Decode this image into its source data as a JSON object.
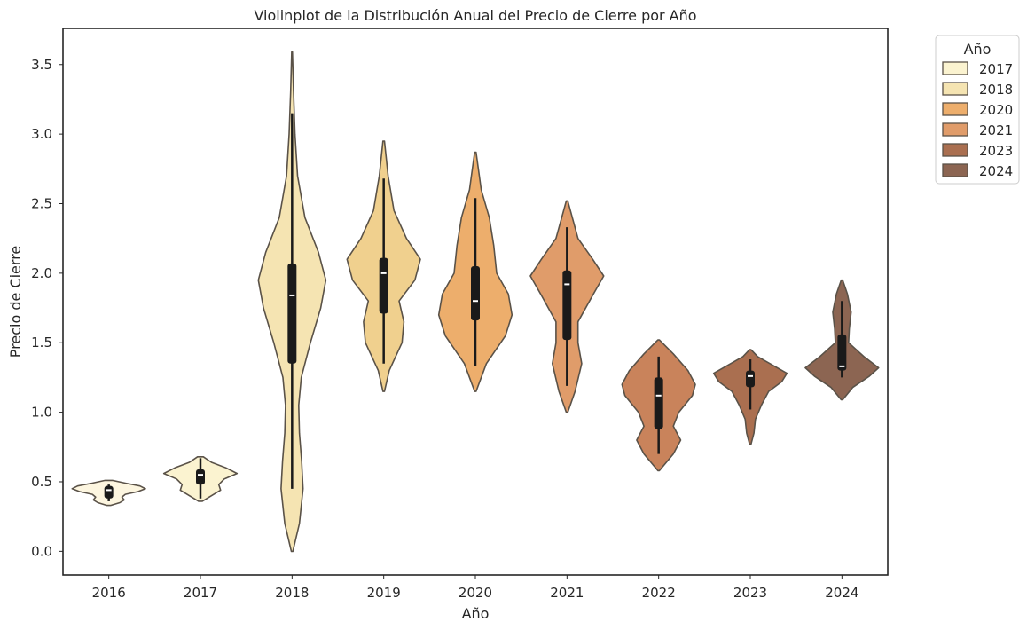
{
  "chart_data": {
    "type": "violin",
    "title": "Violinplot de la Distribución Anual del Precio de Cierre por Año",
    "xlabel": "Año",
    "ylabel": "Precio de Cierre",
    "categories": [
      "2016",
      "2017",
      "2018",
      "2019",
      "2020",
      "2021",
      "2022",
      "2023",
      "2024"
    ],
    "ylim": [
      -0.17,
      3.76
    ],
    "yticks": [
      "0.0",
      "0.5",
      "1.0",
      "1.5",
      "2.0",
      "2.5",
      "3.0",
      "3.5"
    ],
    "grid": false,
    "legend": {
      "title": "Año",
      "placement": "outside-top-right",
      "entries": [
        "2017",
        "2018",
        "2020",
        "2021",
        "2023",
        "2024"
      ]
    },
    "series": [
      {
        "category": "2016",
        "color": "#fdf6e0",
        "min": 0.34,
        "max": 0.5,
        "q1": 0.38,
        "median": 0.44,
        "q3": 0.47,
        "whisker_low": 0.36,
        "whisker_high": 0.48,
        "density": [
          [
            0.33,
            0.05
          ],
          [
            0.35,
            0.3
          ],
          [
            0.37,
            0.42
          ],
          [
            0.39,
            0.36
          ],
          [
            0.41,
            0.45
          ],
          [
            0.43,
            0.8
          ],
          [
            0.45,
            1.0
          ],
          [
            0.47,
            0.85
          ],
          [
            0.49,
            0.45
          ],
          [
            0.51,
            0.1
          ]
        ]
      },
      {
        "category": "2017",
        "color": "#fbf3d0",
        "min": 0.36,
        "max": 0.69,
        "q1": 0.48,
        "median": 0.55,
        "q3": 0.59,
        "whisker_low": 0.38,
        "whisker_high": 0.67,
        "density": [
          [
            0.36,
            0.05
          ],
          [
            0.4,
            0.3
          ],
          [
            0.44,
            0.55
          ],
          [
            0.48,
            0.5
          ],
          [
            0.52,
            0.65
          ],
          [
            0.56,
            1.0
          ],
          [
            0.6,
            0.7
          ],
          [
            0.64,
            0.3
          ],
          [
            0.68,
            0.08
          ]
        ]
      },
      {
        "category": "2018",
        "color": "#f5e4b2",
        "min": 0.01,
        "max": 3.59,
        "q1": 1.35,
        "median": 1.84,
        "q3": 2.07,
        "whisker_low": 0.45,
        "whisker_high": 3.15,
        "density": [
          [
            0.0,
            0.02
          ],
          [
            0.2,
            0.2
          ],
          [
            0.45,
            0.3
          ],
          [
            0.65,
            0.26
          ],
          [
            0.85,
            0.2
          ],
          [
            1.05,
            0.18
          ],
          [
            1.25,
            0.25
          ],
          [
            1.5,
            0.5
          ],
          [
            1.75,
            0.78
          ],
          [
            1.95,
            0.92
          ],
          [
            2.15,
            0.72
          ],
          [
            2.4,
            0.35
          ],
          [
            2.7,
            0.15
          ],
          [
            3.0,
            0.08
          ],
          [
            3.3,
            0.04
          ],
          [
            3.59,
            0.01
          ]
        ]
      },
      {
        "category": "2019",
        "color": "#f0d08e",
        "min": 1.15,
        "max": 2.95,
        "q1": 1.71,
        "median": 2.0,
        "q3": 2.11,
        "whisker_low": 1.35,
        "whisker_high": 2.68,
        "density": [
          [
            1.15,
            0.02
          ],
          [
            1.3,
            0.15
          ],
          [
            1.5,
            0.5
          ],
          [
            1.65,
            0.55
          ],
          [
            1.8,
            0.42
          ],
          [
            1.95,
            0.85
          ],
          [
            2.1,
            1.0
          ],
          [
            2.25,
            0.62
          ],
          [
            2.45,
            0.28
          ],
          [
            2.7,
            0.12
          ],
          [
            2.95,
            0.02
          ]
        ]
      },
      {
        "category": "2020",
        "color": "#edae6c",
        "min": 1.15,
        "max": 2.87,
        "q1": 1.66,
        "median": 1.8,
        "q3": 2.05,
        "whisker_low": 1.33,
        "whisker_high": 2.54,
        "density": [
          [
            1.15,
            0.02
          ],
          [
            1.35,
            0.3
          ],
          [
            1.55,
            0.82
          ],
          [
            1.7,
            1.0
          ],
          [
            1.85,
            0.9
          ],
          [
            2.0,
            0.58
          ],
          [
            2.2,
            0.5
          ],
          [
            2.4,
            0.38
          ],
          [
            2.6,
            0.16
          ],
          [
            2.87,
            0.02
          ]
        ]
      },
      {
        "category": "2021",
        "color": "#e09c6a",
        "min": 1.0,
        "max": 2.52,
        "q1": 1.52,
        "median": 1.92,
        "q3": 2.02,
        "whisker_low": 1.19,
        "whisker_high": 2.33,
        "density": [
          [
            1.0,
            0.02
          ],
          [
            1.15,
            0.22
          ],
          [
            1.35,
            0.4
          ],
          [
            1.5,
            0.3
          ],
          [
            1.65,
            0.3
          ],
          [
            1.85,
            0.72
          ],
          [
            1.98,
            1.0
          ],
          [
            2.1,
            0.7
          ],
          [
            2.25,
            0.3
          ],
          [
            2.52,
            0.02
          ]
        ]
      },
      {
        "category": "2022",
        "color": "#c9835b",
        "min": 0.58,
        "max": 1.52,
        "q1": 0.88,
        "median": 1.12,
        "q3": 1.25,
        "whisker_low": 0.7,
        "whisker_high": 1.4,
        "density": [
          [
            0.58,
            0.02
          ],
          [
            0.7,
            0.4
          ],
          [
            0.8,
            0.6
          ],
          [
            0.9,
            0.4
          ],
          [
            1.0,
            0.55
          ],
          [
            1.12,
            0.92
          ],
          [
            1.2,
            1.0
          ],
          [
            1.3,
            0.8
          ],
          [
            1.42,
            0.4
          ],
          [
            1.52,
            0.02
          ]
        ]
      },
      {
        "category": "2023",
        "color": "#aa6f50",
        "min": 0.77,
        "max": 1.45,
        "q1": 1.18,
        "median": 1.26,
        "q3": 1.3,
        "whisker_low": 1.02,
        "whisker_high": 1.38,
        "density": [
          [
            0.77,
            0.02
          ],
          [
            0.85,
            0.1
          ],
          [
            0.95,
            0.14
          ],
          [
            1.05,
            0.3
          ],
          [
            1.15,
            0.5
          ],
          [
            1.22,
            0.86
          ],
          [
            1.28,
            1.0
          ],
          [
            1.34,
            0.6
          ],
          [
            1.4,
            0.2
          ],
          [
            1.45,
            0.02
          ]
        ]
      },
      {
        "category": "2024",
        "color": "#8c6552",
        "min": 1.09,
        "max": 1.95,
        "q1": 1.3,
        "median": 1.33,
        "q3": 1.56,
        "whisker_low": 1.25,
        "whisker_high": 1.8,
        "density": [
          [
            1.09,
            0.02
          ],
          [
            1.18,
            0.3
          ],
          [
            1.26,
            0.75
          ],
          [
            1.32,
            1.0
          ],
          [
            1.4,
            0.6
          ],
          [
            1.5,
            0.18
          ],
          [
            1.6,
            0.2
          ],
          [
            1.72,
            0.25
          ],
          [
            1.85,
            0.15
          ],
          [
            1.95,
            0.02
          ]
        ]
      }
    ]
  }
}
